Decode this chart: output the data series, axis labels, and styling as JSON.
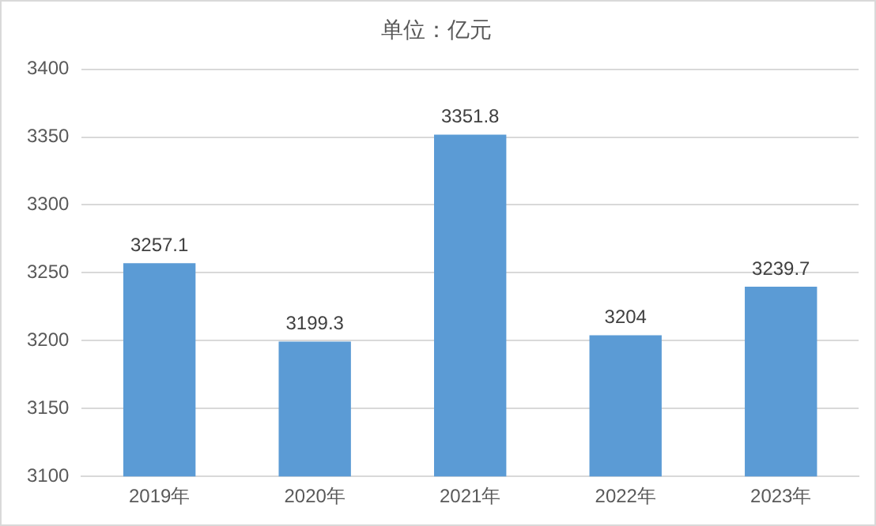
{
  "chart_data": {
    "type": "bar",
    "title": "单位：亿元",
    "categories": [
      "2019年",
      "2020年",
      "2021年",
      "2022年",
      "2023年"
    ],
    "values": [
      3257.1,
      3199.3,
      3351.8,
      3204,
      3239.7
    ],
    "value_labels": [
      "3257.1",
      "3199.3",
      "3351.8",
      "3204",
      "3239.7"
    ],
    "color": "#5b9bd5",
    "ylim": [
      3100,
      3400
    ],
    "yticks": [
      3100,
      3150,
      3200,
      3250,
      3300,
      3350,
      3400
    ],
    "grid": "y",
    "legend": false
  }
}
